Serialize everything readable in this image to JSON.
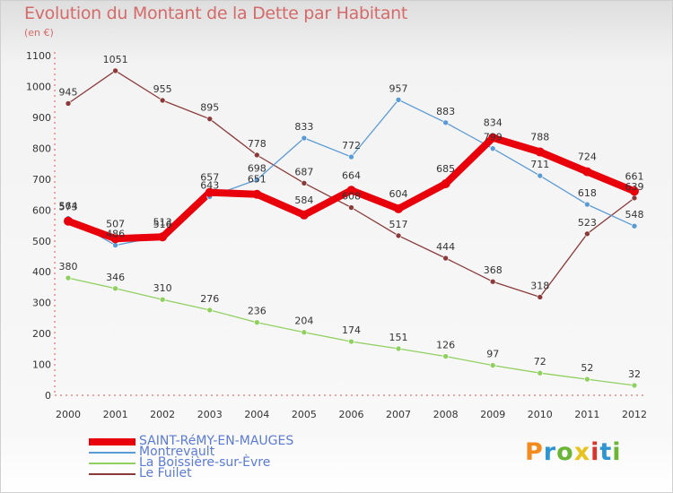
{
  "header": {
    "title": "Evolution du Montant de la Dette par Habitant",
    "unit": "(en €)"
  },
  "brand": {
    "text": "Proxiti",
    "colors": [
      "#f28a1e",
      "#2e95d3",
      "#6ab536",
      "#e8c21d",
      "#d9352c",
      "#2e95d3",
      "#6ab536"
    ]
  },
  "chart_data": {
    "type": "line",
    "x": [
      "2000",
      "2001",
      "2002",
      "2003",
      "2004",
      "2005",
      "2006",
      "2007",
      "2008",
      "2009",
      "2010",
      "2011",
      "2012"
    ],
    "ylim": [
      0,
      1100
    ],
    "yticks": [
      "0",
      "100",
      "200",
      "300",
      "400",
      "500",
      "600",
      "700",
      "800",
      "900",
      "1000",
      "1100"
    ],
    "grid": false,
    "legend_position": "bottom-left",
    "series": [
      {
        "name": "SAINT-RéMY-EN-MAUGES",
        "color": "#e8000b",
        "values": [
          564,
          507,
          513,
          657,
          651,
          584,
          664,
          604,
          685,
          834,
          788,
          724,
          661
        ],
        "labels": [
          "564",
          "507",
          "513",
          "657",
          "651",
          "584",
          "664",
          "604",
          "685",
          "834",
          "788",
          "724",
          "661"
        ]
      },
      {
        "name": "Montrevault",
        "color": "#5b9bd5",
        "values": [
          573,
          486,
          516,
          643,
          698,
          833,
          772,
          957,
          883,
          799,
          711,
          618,
          548
        ],
        "labels": [
          "573",
          "486",
          "516",
          "643",
          "698",
          "833",
          "772",
          "957",
          "883",
          "799",
          "711",
          "618",
          "548"
        ]
      },
      {
        "name": "La Boissière-sur-Èvre",
        "color": "#90d060",
        "values": [
          380,
          346,
          310,
          276,
          236,
          204,
          174,
          151,
          126,
          97,
          72,
          52,
          32
        ],
        "labels": [
          "380",
          "346",
          "310",
          "276",
          "236",
          "204",
          "174",
          "151",
          "126",
          "97",
          "72",
          "52",
          "32"
        ]
      },
      {
        "name": "Le Fuilet",
        "color": "#8b3a3a",
        "values": [
          945,
          1051,
          955,
          895,
          778,
          687,
          608,
          517,
          444,
          368,
          318,
          523,
          639
        ],
        "labels": [
          "945",
          "1051",
          "955",
          "895",
          "778",
          "687",
          "608",
          "517",
          "444",
          "368",
          "318",
          "523",
          "639"
        ]
      }
    ]
  }
}
